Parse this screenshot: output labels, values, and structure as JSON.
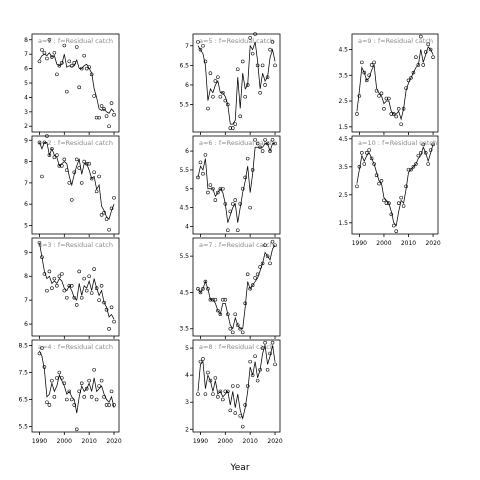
{
  "figure": {
    "xlabel": "Year"
  },
  "chart_data": [
    {
      "type": "scatter",
      "title": "a=1 : f=Residual catch",
      "xlim": [
        1987,
        2022
      ],
      "ylim": [
        1.6,
        8.4
      ],
      "yticks": [
        2,
        3,
        4,
        5,
        6,
        7,
        8
      ],
      "show_xticks": false,
      "x": [
        1990,
        1991,
        1992,
        1993,
        1994,
        1995,
        1996,
        1997,
        1998,
        1999,
        2000,
        2001,
        2002,
        2003,
        2004,
        2005,
        2006,
        2007,
        2008,
        2009,
        2010,
        2011,
        2012,
        2013,
        2014,
        2015,
        2016,
        2017,
        2018,
        2019,
        2020
      ],
      "y": [
        6.5,
        7.3,
        7.1,
        6.7,
        8.0,
        6.8,
        7.1,
        5.6,
        6.2,
        6.4,
        7.6,
        4.4,
        6.5,
        6.2,
        6.4,
        7.5,
        4.7,
        6.0,
        6.9,
        6.0,
        6.1,
        5.6,
        4.1,
        2.6,
        2.6,
        3.4,
        3.2,
        2.7,
        2.0,
        3.6,
        2.8
      ],
      "fit": [
        6.6,
        6.9,
        7.0,
        6.9,
        7.1,
        6.8,
        6.9,
        6.3,
        6.2,
        6.3,
        7.0,
        6.1,
        6.2,
        6.1,
        6.2,
        6.6,
        6.0,
        6.0,
        6.2,
        6.3,
        6.0,
        5.7,
        4.6,
        4.0,
        3.2,
        3.1,
        3.2,
        3.0,
        2.9,
        3.2,
        3.0
      ]
    },
    {
      "type": "scatter",
      "title": "a=2 : f=Residual catch",
      "xlim": [
        1987,
        2022
      ],
      "ylim": [
        4.6,
        9.2
      ],
      "yticks": [
        5,
        6,
        7,
        8,
        9
      ],
      "show_xticks": false,
      "x": [
        1990,
        1991,
        1992,
        1993,
        1994,
        1995,
        1996,
        1997,
        1998,
        1999,
        2000,
        2001,
        2002,
        2003,
        2004,
        2005,
        2006,
        2007,
        2008,
        2009,
        2010,
        2011,
        2012,
        2013,
        2014,
        2015,
        2016,
        2017,
        2018,
        2019,
        2020
      ],
      "y": [
        8.9,
        7.3,
        8.9,
        9.2,
        8.3,
        8.6,
        8.2,
        8.3,
        7.8,
        7.8,
        8.1,
        7.6,
        7.0,
        6.2,
        7.5,
        8.1,
        7.7,
        7.0,
        8.0,
        7.9,
        7.9,
        7.2,
        7.5,
        6.6,
        7.3,
        5.5,
        5.6,
        5.3,
        4.8,
        5.8,
        6.3
      ],
      "fit": [
        8.9,
        8.6,
        8.9,
        8.9,
        8.3,
        8.6,
        8.3,
        8.2,
        7.8,
        7.9,
        8.0,
        7.9,
        7.3,
        6.9,
        7.4,
        7.8,
        8.1,
        7.4,
        7.9,
        7.9,
        7.6,
        7.2,
        7.3,
        6.7,
        6.9,
        5.9,
        5.7,
        5.4,
        5.3,
        5.7,
        6.0
      ]
    },
    {
      "type": "scatter",
      "title": "a=3 : f=Residual catch",
      "xlim": [
        1987,
        2022
      ],
      "ylim": [
        5.5,
        9.6
      ],
      "yticks": [
        6,
        7,
        8,
        9
      ],
      "show_xticks": false,
      "x": [
        1990,
        1991,
        1992,
        1993,
        1994,
        1995,
        1996,
        1997,
        1998,
        1999,
        2000,
        2001,
        2002,
        2003,
        2004,
        2005,
        2006,
        2007,
        2008,
        2009,
        2010,
        2011,
        2012,
        2013,
        2014,
        2015,
        2016,
        2017,
        2018,
        2019,
        2020
      ],
      "y": [
        9.4,
        8.8,
        8.1,
        7.4,
        8.2,
        7.5,
        7.9,
        7.6,
        8.0,
        8.1,
        7.4,
        7.1,
        7.6,
        7.6,
        7.1,
        6.8,
        8.2,
        7.1,
        7.9,
        7.4,
        8.0,
        7.3,
        8.3,
        7.5,
        7.0,
        7.6,
        6.9,
        6.6,
        5.8,
        6.7,
        6.1
      ],
      "fit": [
        9.4,
        8.8,
        8.2,
        7.9,
        8.0,
        7.7,
        7.8,
        7.7,
        7.9,
        7.8,
        7.5,
        7.4,
        7.6,
        7.4,
        7.1,
        7.0,
        7.7,
        7.2,
        7.6,
        7.5,
        7.8,
        7.4,
        7.9,
        7.5,
        7.2,
        7.4,
        6.9,
        6.7,
        6.3,
        6.4,
        6.2
      ]
    },
    {
      "type": "scatter",
      "title": "a=4 : f=Residual catch",
      "xlim": [
        1987,
        2022
      ],
      "ylim": [
        5.3,
        8.7
      ],
      "yticks": [
        5.5,
        6.5,
        7.5,
        8.5
      ],
      "show_xticks": true,
      "x": [
        1990,
        1991,
        1992,
        1993,
        1994,
        1995,
        1996,
        1997,
        1998,
        1999,
        2000,
        2001,
        2002,
        2003,
        2004,
        2005,
        2006,
        2007,
        2008,
        2009,
        2010,
        2011,
        2012,
        2013,
        2014,
        2015,
        2016,
        2017,
        2018,
        2019,
        2020
      ],
      "y": [
        8.2,
        8.4,
        7.7,
        6.4,
        6.3,
        7.2,
        6.6,
        7.3,
        7.5,
        7.3,
        7.1,
        6.5,
        6.8,
        6.5,
        6.3,
        5.4,
        6.8,
        7.1,
        6.6,
        6.9,
        7.2,
        6.6,
        7.6,
        6.5,
        7.0,
        7.2,
        6.6,
        6.3,
        6.3,
        6.8,
        6.3
      ],
      "fit": [
        8.3,
        8.1,
        7.6,
        6.6,
        6.7,
        7.1,
        6.8,
        7.0,
        7.4,
        7.2,
        7.0,
        6.7,
        6.8,
        6.6,
        6.5,
        6.0,
        6.6,
        7.0,
        6.8,
        6.9,
        7.1,
        6.8,
        7.3,
        6.8,
        6.9,
        7.0,
        6.7,
        6.5,
        6.4,
        6.6,
        6.2
      ]
    },
    {
      "type": "scatter",
      "title": "a=5 : f=Residual catch",
      "xlim": [
        1987,
        2022
      ],
      "ylim": [
        4.8,
        7.3
      ],
      "yticks": [
        5.5,
        6.0,
        6.5,
        7.0
      ],
      "show_xticks": false,
      "x": [
        1989,
        1990,
        1991,
        1992,
        1993,
        1994,
        1995,
        1996,
        1997,
        1998,
        1999,
        2000,
        2001,
        2002,
        2003,
        2004,
        2005,
        2006,
        2007,
        2008,
        2009,
        2010,
        2011,
        2012,
        2013,
        2014,
        2015,
        2016,
        2017,
        2018,
        2019,
        2020
      ],
      "y": [
        7.1,
        6.9,
        7.0,
        6.6,
        5.4,
        6.3,
        5.7,
        6.1,
        6.2,
        5.7,
        5.8,
        5.6,
        5.5,
        4.9,
        4.9,
        5.0,
        6.4,
        5.2,
        6.6,
        5.7,
        6.0,
        7.2,
        6.8,
        7.3,
        6.5,
        5.8,
        6.5,
        6.0,
        6.2,
        6.9,
        7.1,
        6.5
      ],
      "fit": [
        7.0,
        6.9,
        6.8,
        6.5,
        5.6,
        5.9,
        5.8,
        6.0,
        6.1,
        5.8,
        5.8,
        5.7,
        5.5,
        5.0,
        5.0,
        5.1,
        6.2,
        5.4,
        6.3,
        5.9,
        6.0,
        7.0,
        6.9,
        7.1,
        6.6,
        5.9,
        6.3,
        6.1,
        6.2,
        6.7,
        6.9,
        6.6
      ]
    },
    {
      "type": "scatter",
      "title": "a=6 : f=Residual catch",
      "xlim": [
        1987,
        2022
      ],
      "ylim": [
        3.8,
        6.4
      ],
      "yticks": [
        4.0,
        4.5,
        5.0,
        5.5,
        6.0
      ],
      "show_xticks": false,
      "x": [
        1989,
        1990,
        1991,
        1992,
        1993,
        1994,
        1995,
        1996,
        1997,
        1998,
        1999,
        2000,
        2001,
        2002,
        2003,
        2004,
        2005,
        2006,
        2007,
        2008,
        2009,
        2010,
        2011,
        2012,
        2013,
        2014,
        2015,
        2016,
        2017,
        2018,
        2019,
        2020
      ],
      "y": [
        5.3,
        5.7,
        5.4,
        5.9,
        4.9,
        5.1,
        5.0,
        4.7,
        4.9,
        5.0,
        5.0,
        4.6,
        3.9,
        4.4,
        4.6,
        4.7,
        3.9,
        4.6,
        5.0,
        5.3,
        5.8,
        4.5,
        5.5,
        6.3,
        6.2,
        6.1,
        6.0,
        6.3,
        6.2,
        6.0,
        6.3,
        6.2
      ],
      "fit": [
        5.3,
        5.6,
        5.5,
        5.8,
        5.0,
        5.0,
        5.0,
        4.8,
        4.9,
        5.0,
        4.9,
        4.6,
        4.1,
        4.3,
        4.5,
        4.6,
        4.1,
        4.5,
        4.9,
        5.2,
        5.6,
        4.9,
        5.4,
        6.1,
        6.1,
        6.1,
        6.1,
        6.2,
        6.2,
        6.0,
        6.2,
        6.2
      ]
    },
    {
      "type": "scatter",
      "title": "a=7 : f=Residual catch",
      "xlim": [
        1987,
        2022
      ],
      "ylim": [
        3.3,
        6.0
      ],
      "yticks": [
        3.5,
        4.5,
        5.5
      ],
      "show_xticks": false,
      "x": [
        1989,
        1990,
        1991,
        1992,
        1993,
        1994,
        1995,
        1996,
        1997,
        1998,
        1999,
        2000,
        2001,
        2002,
        2003,
        2004,
        2005,
        2006,
        2007,
        2008,
        2009,
        2010,
        2011,
        2012,
        2013,
        2014,
        2015,
        2016,
        2017,
        2018,
        2019,
        2020
      ],
      "y": [
        4.6,
        4.5,
        4.6,
        4.8,
        4.6,
        4.3,
        4.3,
        4.3,
        4.0,
        3.9,
        4.3,
        4.3,
        3.9,
        3.5,
        3.4,
        3.9,
        3.6,
        3.5,
        3.4,
        4.2,
        5.0,
        4.6,
        4.7,
        4.9,
        5.0,
        5.2,
        5.3,
        5.8,
        5.5,
        5.3,
        5.9,
        5.8
      ],
      "fit": [
        4.6,
        4.5,
        4.6,
        4.8,
        4.6,
        4.3,
        4.3,
        4.2,
        4.0,
        3.9,
        4.2,
        4.2,
        3.9,
        3.6,
        3.5,
        3.8,
        3.6,
        3.5,
        3.5,
        4.1,
        4.8,
        4.6,
        4.7,
        4.8,
        4.9,
        5.1,
        5.3,
        5.6,
        5.5,
        5.4,
        5.7,
        5.8
      ]
    },
    {
      "type": "scatter",
      "title": "a=8 : f=Residual catch",
      "xlim": [
        1987,
        2022
      ],
      "ylim": [
        1.9,
        5.3
      ],
      "yticks": [
        2.0,
        3.0,
        4.0,
        5.0
      ],
      "show_xticks": true,
      "x": [
        1989,
        1990,
        1991,
        1992,
        1993,
        1994,
        1995,
        1996,
        1997,
        1998,
        1999,
        2000,
        2001,
        2002,
        2003,
        2004,
        2005,
        2006,
        2007,
        2008,
        2009,
        2010,
        2011,
        2012,
        2013,
        2014,
        2015,
        2016,
        2017,
        2018,
        2019,
        2020
      ],
      "y": [
        3.3,
        4.5,
        4.6,
        3.3,
        4.1,
        3.8,
        3.3,
        3.9,
        3.2,
        3.4,
        3.1,
        3.4,
        3.4,
        2.7,
        3.6,
        2.6,
        3.6,
        2.5,
        2.1,
        2.9,
        3.6,
        4.5,
        4.0,
        4.7,
        3.8,
        4.2,
        5.0,
        5.2,
        4.2,
        4.8,
        5.2,
        4.4
      ],
      "fit": [
        3.4,
        4.4,
        4.5,
        3.5,
        4.0,
        3.8,
        3.4,
        3.8,
        3.3,
        3.4,
        3.2,
        3.3,
        3.4,
        2.9,
        3.4,
        2.8,
        3.3,
        2.7,
        2.4,
        2.8,
        3.4,
        4.3,
        4.0,
        4.5,
        3.9,
        4.2,
        4.8,
        5.1,
        4.4,
        4.7,
        5.1,
        4.5
      ]
    },
    {
      "type": "scatter",
      "title": "a=9 : f=Residual catch",
      "xlim": [
        1987,
        2022
      ],
      "ylim": [
        1.3,
        5.1
      ],
      "yticks": [
        1.5,
        2.5,
        3.5,
        4.5
      ],
      "show_xticks": false,
      "x": [
        1989,
        1990,
        1991,
        1992,
        1993,
        1994,
        1995,
        1996,
        1997,
        1998,
        1999,
        2000,
        2001,
        2002,
        2003,
        2004,
        2005,
        2006,
        2007,
        2008,
        2009,
        2010,
        2011,
        2012,
        2013,
        2014,
        2015,
        2016,
        2017,
        2018,
        2019,
        2020
      ],
      "y": [
        2.0,
        2.7,
        4.0,
        3.6,
        3.3,
        3.5,
        3.9,
        4.0,
        2.9,
        2.7,
        2.8,
        2.2,
        2.6,
        2.6,
        2.0,
        2.0,
        1.9,
        2.2,
        1.6,
        2.2,
        3.0,
        3.3,
        3.4,
        3.6,
        4.2,
        3.9,
        5.0,
        3.9,
        4.4,
        4.7,
        4.5,
        4.2
      ],
      "fit": [
        2.1,
        2.9,
        3.8,
        3.6,
        3.3,
        3.4,
        3.7,
        3.9,
        3.0,
        2.8,
        2.7,
        2.4,
        2.5,
        2.5,
        2.1,
        2.0,
        2.0,
        2.1,
        1.8,
        2.2,
        2.9,
        3.2,
        3.4,
        3.6,
        3.8,
        3.9,
        4.5,
        4.0,
        4.3,
        4.6,
        4.5,
        4.3
      ]
    },
    {
      "type": "scatter",
      "title": "a=10 : f=Residual catch",
      "xlim": [
        1987,
        2022
      ],
      "ylim": [
        1.1,
        4.6
      ],
      "yticks": [
        1.5,
        2.5,
        3.5,
        4.5
      ],
      "show_xticks": true,
      "x": [
        1989,
        1990,
        1991,
        1992,
        1993,
        1994,
        1995,
        1996,
        1997,
        1998,
        1999,
        2000,
        2001,
        2002,
        2003,
        2004,
        2005,
        2006,
        2007,
        2008,
        2009,
        2010,
        2011,
        2012,
        2013,
        2014,
        2015,
        2016,
        2017,
        2018,
        2019,
        2020
      ],
      "y": [
        2.8,
        3.5,
        4.0,
        3.6,
        4.0,
        4.1,
        3.8,
        3.6,
        3.2,
        2.9,
        3.0,
        2.3,
        2.2,
        2.2,
        1.8,
        1.4,
        1.2,
        2.2,
        2.4,
        2.1,
        2.8,
        3.4,
        3.4,
        3.5,
        3.6,
        3.9,
        4.0,
        4.3,
        4.0,
        3.6,
        4.1,
        4.3
      ],
      "fit": [
        2.9,
        3.4,
        3.9,
        3.7,
        3.9,
        4.0,
        3.8,
        3.6,
        3.3,
        3.0,
        2.9,
        2.4,
        2.3,
        2.2,
        1.9,
        1.5,
        1.4,
        1.9,
        2.3,
        2.2,
        2.7,
        3.3,
        3.4,
        3.5,
        3.6,
        3.8,
        3.9,
        4.2,
        4.0,
        3.7,
        4.0,
        4.3
      ]
    }
  ]
}
